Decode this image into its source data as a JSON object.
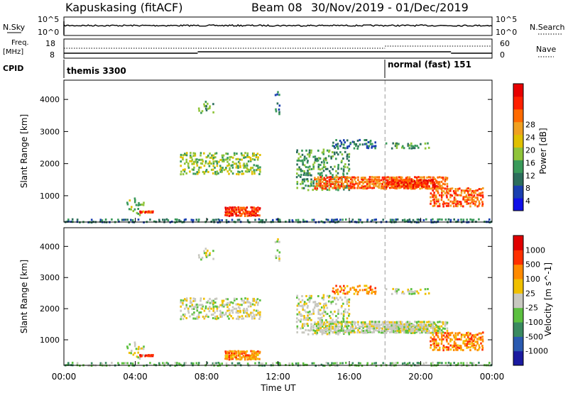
{
  "header": {
    "station": "Kapuskasing (fitACF)",
    "beam": "Beam 08",
    "date_range": "30/Nov/2019 - 01/Dec/2019"
  },
  "info_panels": {
    "nsky_label": "N.Sky",
    "nsky_ticks": [
      "10^5",
      "10^0"
    ],
    "nsearch_label": "N.Search",
    "nsearch_ticks": [
      "10^5",
      "10^0"
    ],
    "freq_label_line1": "Freq.",
    "freq_label_line2": "[MHz]",
    "freq_ticks": [
      "18",
      "8"
    ],
    "nave_label": "Nave",
    "nave_ticks": [
      "60",
      "0"
    ],
    "cpid_label": "CPID",
    "cpid_segments": [
      {
        "start_hour": 0,
        "label": "themis 3300"
      },
      {
        "start_hour": 18,
        "label": "normal (fast) 151"
      }
    ]
  },
  "chart_data": [
    {
      "type": "heatmap",
      "panel": "power",
      "ylabel": "Slant Range [km]",
      "yticks": [
        1000,
        2000,
        3000,
        4000
      ],
      "ylim": [
        180,
        4600
      ],
      "xlim": [
        0,
        24
      ],
      "colorbar": {
        "label": "Power [dB]",
        "ticks": [
          "4",
          "8",
          "12",
          "16",
          "20",
          "24",
          "28"
        ],
        "colors": [
          "#1010e8",
          "#1a3fb0",
          "#2c6e5c",
          "#3a9a5a",
          "#8fc43a",
          "#e0c000",
          "#f0a020",
          "#ff6a00",
          "#ff2000",
          "#e80000"
        ]
      }
    },
    {
      "type": "heatmap",
      "panel": "velocity",
      "ylabel": "Slant Range [km]",
      "yticks": [
        1000,
        2000,
        3000,
        4000
      ],
      "ylim": [
        180,
        4600
      ],
      "xlim": [
        0,
        24
      ],
      "xticks": [
        "00:00",
        "04:00",
        "08:00",
        "12:00",
        "16:00",
        "20:00",
        "00:00"
      ],
      "xlabel": "Time UT",
      "colorbar": {
        "label": "Velocity [m s^-1]",
        "ticks": [
          "1000",
          "500",
          "100",
          "25",
          "-25",
          "-100",
          "-500",
          "-1000"
        ],
        "colors": [
          "#1a1aa0",
          "#2a5ab0",
          "#3a8a60",
          "#5cc040",
          "#c8c8c0",
          "#f0c000",
          "#ff8a00",
          "#ff3000",
          "#e00000"
        ]
      }
    }
  ],
  "colors": {
    "grey_scatter": "#c8c8c0",
    "frame": "#000000"
  }
}
